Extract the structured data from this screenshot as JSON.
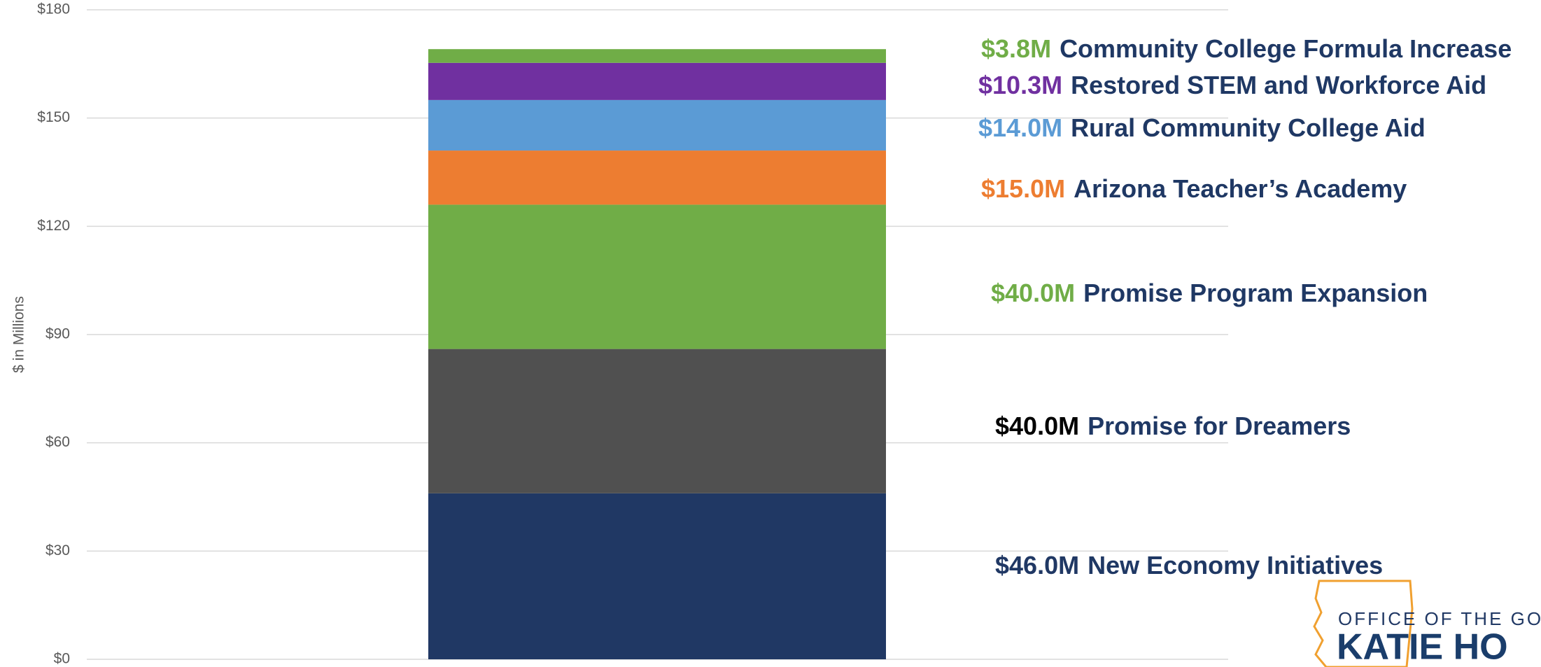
{
  "chart_data": {
    "type": "stacked_bar",
    "y_axis_label": "$ in Millions",
    "categories": [
      null
    ],
    "ylim": [
      0,
      180
    ],
    "yticks": [
      {
        "value": 0,
        "label": "$0"
      },
      {
        "value": 30,
        "label": "$30"
      },
      {
        "value": 60,
        "label": "$60"
      },
      {
        "value": 90,
        "label": "$90"
      },
      {
        "value": 120,
        "label": "$120"
      },
      {
        "value": 150,
        "label": "$150"
      },
      {
        "value": 180,
        "label": "$180"
      }
    ],
    "grid": true,
    "series": [
      {
        "name": "New Economy Initiatives",
        "color": "#203864",
        "label_color": "#203864",
        "values": [
          46.0
        ],
        "value_labels": [
          "$46.0M"
        ]
      },
      {
        "name": "Promise for Dreamers",
        "color": "#505050",
        "label_color": "#000000",
        "values": [
          40.0
        ],
        "value_labels": [
          "$40.0M"
        ]
      },
      {
        "name": "Promise Program Expansion",
        "color": "#70ad47",
        "label_color": "#70ad47",
        "values": [
          40.0
        ],
        "value_labels": [
          "$40.0M"
        ]
      },
      {
        "name": "Arizona Teacher’s Academy",
        "color": "#ed7d31",
        "label_color": "#ed7d31",
        "values": [
          15.0
        ],
        "value_labels": [
          "$15.0M"
        ]
      },
      {
        "name": "Rural Community College Aid",
        "color": "#5b9bd5",
        "label_color": "#5b9bd5",
        "values": [
          14.0
        ],
        "value_labels": [
          "$14.0M"
        ]
      },
      {
        "name": "Restored STEM and Workforce Aid",
        "color": "#7030a0",
        "label_color": "#7030a0",
        "values": [
          10.3
        ],
        "value_labels": [
          "$10.3M"
        ]
      },
      {
        "name": "Community College Formula Increase",
        "color": "#70ad47",
        "label_color": "#70ad47",
        "values": [
          3.8
        ],
        "value_labels": [
          "$3.8M"
        ]
      }
    ]
  },
  "logo": {
    "line1": "OFFICE OF THE GOV",
    "line2": "KATIE HO"
  }
}
